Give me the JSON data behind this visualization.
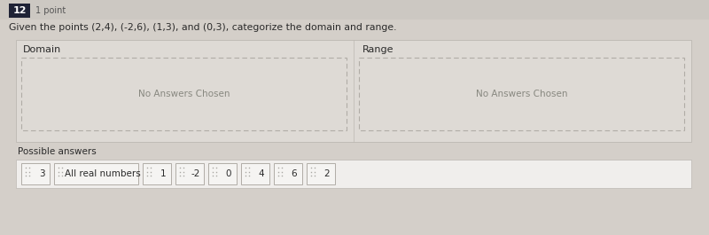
{
  "question_number": "12",
  "points_label": "1 point",
  "question_text": "Given the points (2,4), (-2,6), (1,3), and (0,3), categorize the domain and range.",
  "domain_label": "Domain",
  "range_label": "Range",
  "no_answers_text": "No Answers Chosen",
  "possible_answers_label": "Possible answers",
  "answer_chips": [
    "3",
    "All real numbers",
    "1",
    "-2",
    "0",
    "4",
    "6",
    "2"
  ],
  "chip_widths": [
    32,
    95,
    32,
    32,
    32,
    32,
    32,
    32
  ],
  "bg_color": "#d4cfc9",
  "content_bg": "#dedad5",
  "white_box_bg": "#f0eeec",
  "chip_bg": "#f5f4f2",
  "chip_border": "#b0aca6",
  "dashed_border_color": "#b0aca6",
  "num_badge_bg": "#1e2235",
  "num_badge_text": "#ffffff",
  "text_color": "#2a2a2a",
  "label_color": "#555555",
  "no_answer_color": "#888880"
}
